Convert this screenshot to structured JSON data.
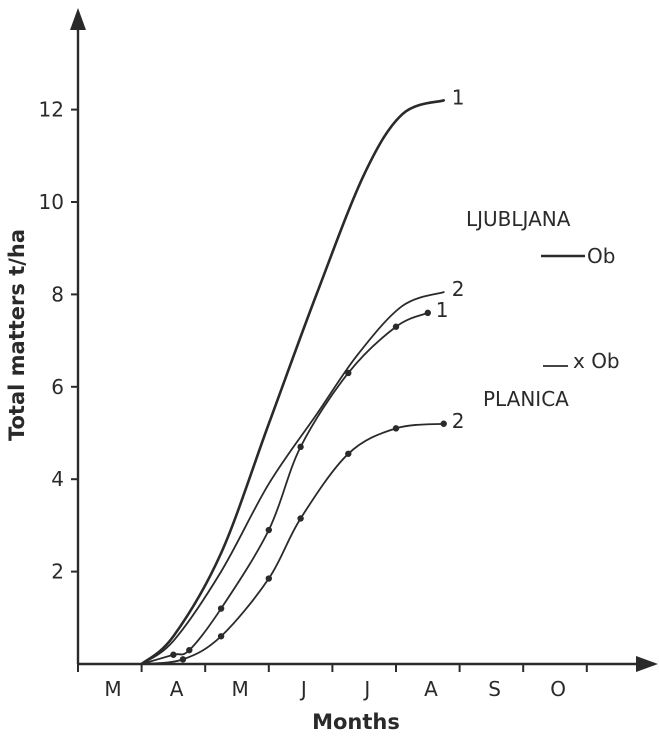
{
  "chart_data": {
    "type": "line",
    "title": "",
    "xlabel": "Months",
    "ylabel": "Total matters t/ha",
    "x_categories": [
      "M",
      "A",
      "M",
      "J",
      "J",
      "A",
      "S",
      "O"
    ],
    "yticks": [
      "2",
      "4",
      "6",
      "8",
      "10",
      "12"
    ],
    "ylim": [
      0,
      13.5
    ],
    "grid": false,
    "annotations": {
      "ljubljana": "LJUBLJANA",
      "ljubljana_ob": "Ob",
      "planica": "PLANICA",
      "planica_ob": "x Ob"
    },
    "series": [
      {
        "group": "LJUBLJANA",
        "label": "1",
        "marker": false,
        "stroke": 2.6,
        "points": [
          [
            2.0,
            0
          ],
          [
            3.0,
            0.6
          ],
          [
            4.5,
            2.4
          ],
          [
            6.0,
            5.2
          ],
          [
            7.5,
            8.0
          ],
          [
            9.0,
            10.6
          ],
          [
            10.2,
            11.9
          ],
          [
            11.5,
            12.2
          ]
        ]
      },
      {
        "group": "LJUBLJANA",
        "label": "2",
        "marker": false,
        "stroke": 1.8,
        "points": [
          [
            2.0,
            0
          ],
          [
            3.0,
            0.5
          ],
          [
            4.5,
            2.0
          ],
          [
            6.0,
            3.9
          ],
          [
            7.5,
            5.4
          ],
          [
            8.8,
            6.7
          ],
          [
            10.2,
            7.75
          ],
          [
            11.5,
            8.05
          ]
        ]
      },
      {
        "group": "PLANICA",
        "label": "1",
        "marker": true,
        "stroke": 1.8,
        "points": [
          [
            2.0,
            0
          ],
          [
            3.0,
            0.2
          ],
          [
            3.5,
            0.3
          ],
          [
            4.5,
            1.2
          ],
          [
            6.0,
            2.9
          ],
          [
            7.0,
            4.7
          ],
          [
            8.5,
            6.3
          ],
          [
            10.0,
            7.3
          ],
          [
            11.0,
            7.6
          ]
        ]
      },
      {
        "group": "PLANICA",
        "label": "2",
        "marker": true,
        "stroke": 1.8,
        "points": [
          [
            2.0,
            0
          ],
          [
            3.3,
            0.1
          ],
          [
            4.5,
            0.6
          ],
          [
            6.0,
            1.85
          ],
          [
            7.0,
            3.15
          ],
          [
            8.5,
            4.55
          ],
          [
            10.0,
            5.1
          ],
          [
            11.5,
            5.2
          ]
        ]
      }
    ]
  }
}
